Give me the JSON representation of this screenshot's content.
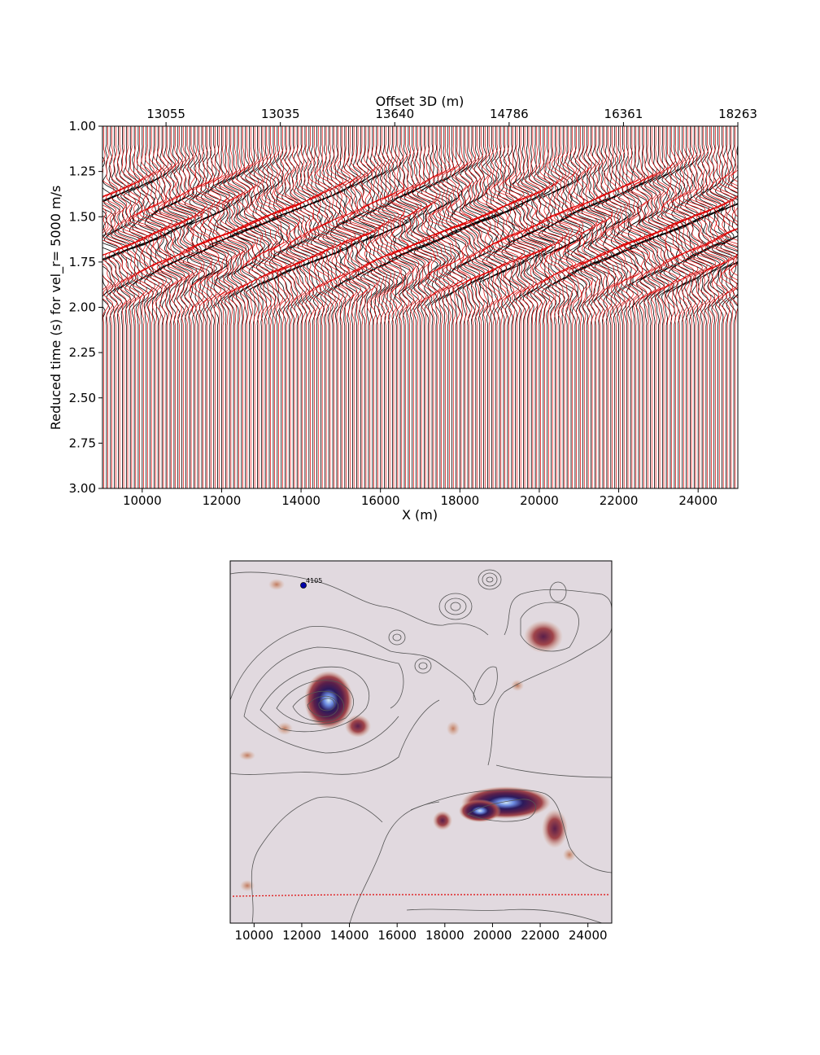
{
  "chart_data": [
    {
      "type": "line",
      "xlabel": "X (m)",
      "ylabel": "Reduced time (s) for vel_r= 5000 m/s",
      "top_axis_label": "Offset 3D (m)",
      "xlim": [
        9000,
        25000
      ],
      "ylim": [
        1.0,
        3.0
      ],
      "y_inverted": true,
      "x_ticks": [
        10000,
        12000,
        14000,
        16000,
        18000,
        20000,
        22000,
        24000
      ],
      "y_ticks": [
        "1.00",
        "1.25",
        "1.50",
        "1.75",
        "2.00",
        "2.25",
        "2.50",
        "2.75",
        "3.00"
      ],
      "top_ticks": [
        {
          "x": 10600,
          "label": "13055"
        },
        {
          "x": 13480,
          "label": "13035"
        },
        {
          "x": 16360,
          "label": "13640"
        },
        {
          "x": 19240,
          "label": "14786"
        },
        {
          "x": 22120,
          "label": "16361"
        },
        {
          "x": 25000,
          "label": "18263"
        }
      ],
      "trace_count": 160,
      "signal_window_s": [
        1.1,
        2.1
      ],
      "series": [
        {
          "color": "#000000"
        },
        {
          "color": "#e00000"
        }
      ],
      "grid": false
    },
    {
      "type": "heatmap",
      "xlim": [
        9000,
        25000
      ],
      "x_ticks": [
        10000,
        12000,
        14000,
        16000,
        18000,
        20000,
        22000,
        24000
      ],
      "annotation": "4105",
      "station_color": "#0000aa",
      "profile_line_color": "#e00000",
      "background_color": "#e1d9df",
      "contour_color": "#555555",
      "colormap": [
        "#e1d9df",
        "#d6a184",
        "#a0454a",
        "#5a1f4a",
        "#2b1a5c",
        "#6b8ae0",
        "#cfe6f5"
      ]
    }
  ]
}
